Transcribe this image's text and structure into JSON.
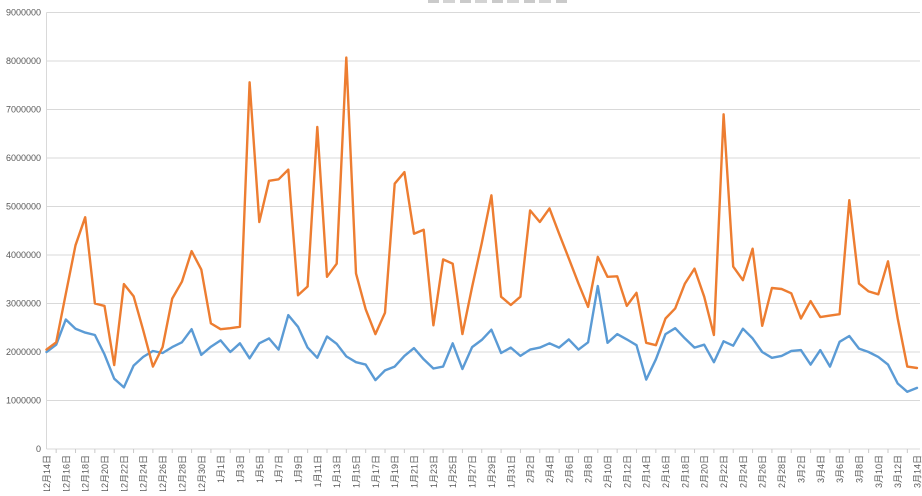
{
  "chart_data": {
    "type": "line",
    "title_clipped": true,
    "legend": false,
    "grid": true,
    "colors": {
      "series_blue": "#5B9BD5",
      "series_orange": "#ED7D31",
      "gridline": "#D9D9D9",
      "tick": "#C9C9C9",
      "axis_text": "#595959",
      "background": "#FFFFFF"
    },
    "y_axis": {
      "min": 0,
      "max": 9000000,
      "step": 1000000,
      "tick_labels": [
        "0",
        "1000000",
        "2000000",
        "3000000",
        "4000000",
        "5000000",
        "6000000",
        "7000000",
        "8000000",
        "9000000"
      ]
    },
    "x_axis": {
      "labels_every": 2,
      "label_rotation_deg": -90
    },
    "dates": [
      "12月14日",
      "12月15日",
      "12月16日",
      "12月17日",
      "12月18日",
      "12月19日",
      "12月20日",
      "12月21日",
      "12月22日",
      "12月23日",
      "12月24日",
      "12月25日",
      "12月26日",
      "12月27日",
      "12月28日",
      "12月29日",
      "12月30日",
      "12月31日",
      "1月1日",
      "1月2日",
      "1月3日",
      "1月4日",
      "1月5日",
      "1月6日",
      "1月7日",
      "1月8日",
      "1月9日",
      "1月10日",
      "1月11日",
      "1月12日",
      "1月13日",
      "1月14日",
      "1月15日",
      "1月16日",
      "1月17日",
      "1月18日",
      "1月19日",
      "1月20日",
      "1月21日",
      "1月22日",
      "1月23日",
      "1月24日",
      "1月25日",
      "1月26日",
      "1月27日",
      "1月28日",
      "1月29日",
      "1月30日",
      "1月31日",
      "2月1日",
      "2月2日",
      "2月3日",
      "2月4日",
      "2月5日",
      "2月6日",
      "2月7日",
      "2月8日",
      "2月9日",
      "2月10日",
      "2月11日",
      "2月12日",
      "2月13日",
      "2月14日",
      "2月15日",
      "2月16日",
      "2月17日",
      "2月18日",
      "2月19日",
      "2月20日",
      "2月21日",
      "2月22日",
      "2月23日",
      "2月24日",
      "2月25日",
      "2月26日",
      "2月27日",
      "2月28日",
      "3月1日",
      "3月2日",
      "3月3日",
      "3月4日",
      "3月5日",
      "3月6日",
      "3月7日",
      "3月8日",
      "3月9日",
      "3月10日",
      "3月11日",
      "3月12日",
      "3月13日",
      "3月14日"
    ],
    "series": [
      {
        "name": "blue",
        "color": "#5B9BD5",
        "values": [
          2000000,
          2150000,
          2670000,
          2480000,
          2400000,
          2350000,
          1950000,
          1450000,
          1270000,
          1720000,
          1900000,
          2020000,
          1980000,
          2100000,
          2200000,
          2470000,
          1940000,
          2110000,
          2240000,
          2000000,
          2180000,
          1870000,
          2180000,
          2280000,
          2050000,
          2760000,
          2520000,
          2090000,
          1880000,
          2320000,
          2170000,
          1910000,
          1790000,
          1740000,
          1420000,
          1620000,
          1700000,
          1920000,
          2080000,
          1850000,
          1660000,
          1700000,
          2180000,
          1650000,
          2100000,
          2250000,
          2460000,
          1980000,
          2090000,
          1920000,
          2050000,
          2090000,
          2180000,
          2090000,
          2260000,
          2050000,
          2200000,
          3360000,
          2190000,
          2370000,
          2260000,
          2140000,
          1430000,
          1850000,
          2370000,
          2490000,
          2280000,
          2090000,
          2150000,
          1790000,
          2220000,
          2130000,
          2480000,
          2280000,
          2000000,
          1880000,
          1920000,
          2020000,
          2040000,
          1740000,
          2040000,
          1700000,
          2210000,
          2330000,
          2070000,
          2000000,
          1900000,
          1740000,
          1350000,
          1180000,
          1260000
        ]
      },
      {
        "name": "orange",
        "color": "#ED7D31",
        "values": [
          2050000,
          2200000,
          3200000,
          4200000,
          4780000,
          3000000,
          2950000,
          1730000,
          3400000,
          3150000,
          2450000,
          1700000,
          2100000,
          3100000,
          3450000,
          4080000,
          3700000,
          2590000,
          2470000,
          2490000,
          2520000,
          7560000,
          4680000,
          5530000,
          5560000,
          5760000,
          3170000,
          3350000,
          6640000,
          3550000,
          3820000,
          8070000,
          3620000,
          2880000,
          2370000,
          2810000,
          5470000,
          5710000,
          4440000,
          4520000,
          2550000,
          3910000,
          3820000,
          2370000,
          3340000,
          4250000,
          5230000,
          3140000,
          2970000,
          3140000,
          4920000,
          4680000,
          4960000,
          4440000,
          3930000,
          3410000,
          2930000,
          3960000,
          3550000,
          3560000,
          2950000,
          3220000,
          2190000,
          2140000,
          2690000,
          2900000,
          3410000,
          3720000,
          3140000,
          2350000,
          6900000,
          3760000,
          3480000,
          4130000,
          2540000,
          3320000,
          3300000,
          3210000,
          2690000,
          3050000,
          2720000,
          2750000,
          2780000,
          5130000,
          3410000,
          3250000,
          3190000,
          3870000,
          2690000,
          1700000,
          1670000
        ]
      }
    ]
  }
}
